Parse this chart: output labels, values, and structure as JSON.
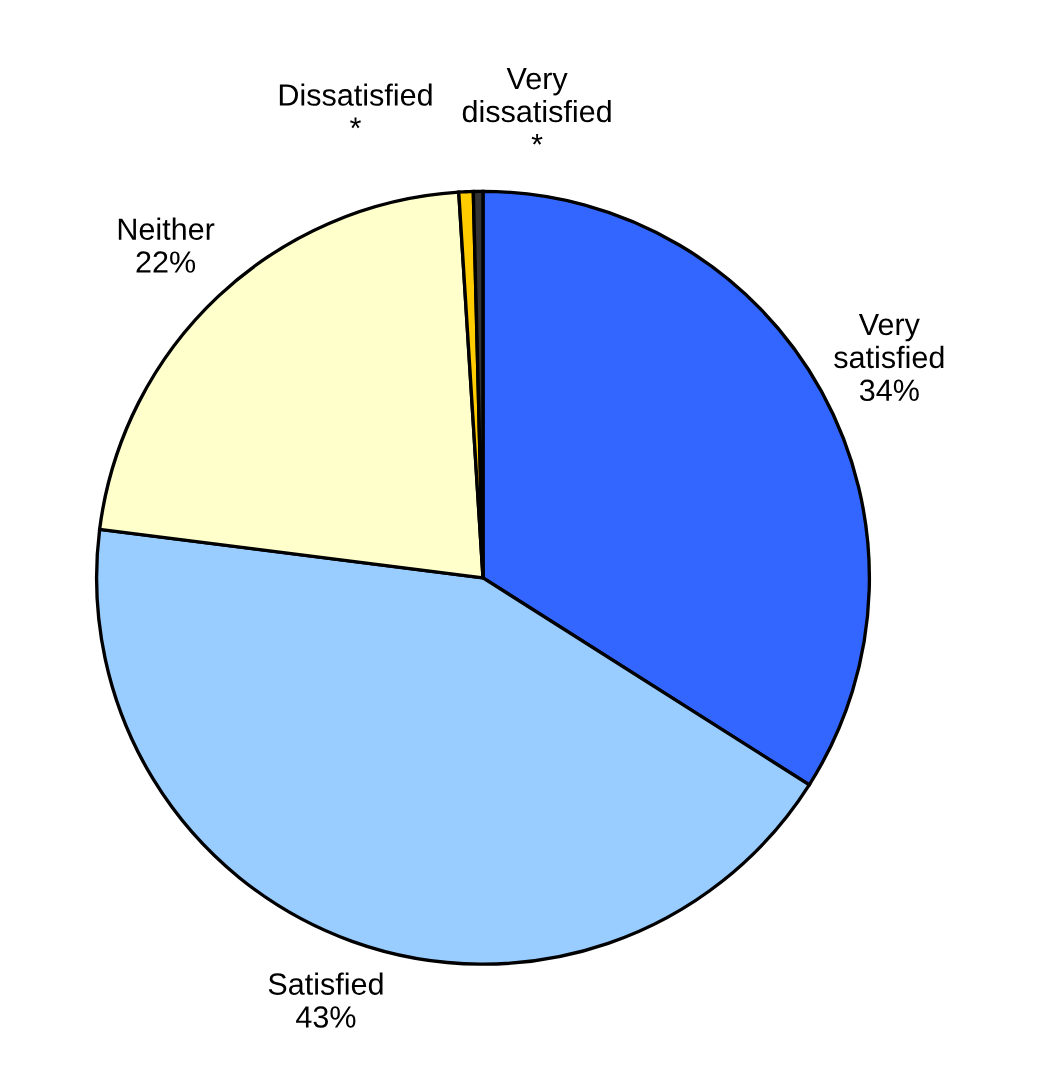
{
  "chart_data": {
    "type": "pie",
    "categories": [
      "Very satisfied",
      "Satisfied",
      "Neither",
      "Dissatisfied",
      "Very dissatisfied"
    ],
    "values": [
      34,
      43,
      22,
      0.6,
      0.4
    ],
    "value_labels": [
      "34%",
      "43%",
      "22%",
      "*",
      "*"
    ],
    "colors": [
      "#3366ff",
      "#99ccff",
      "#ffffcc",
      "#ffcc00",
      "#333333"
    ],
    "legend": false
  }
}
